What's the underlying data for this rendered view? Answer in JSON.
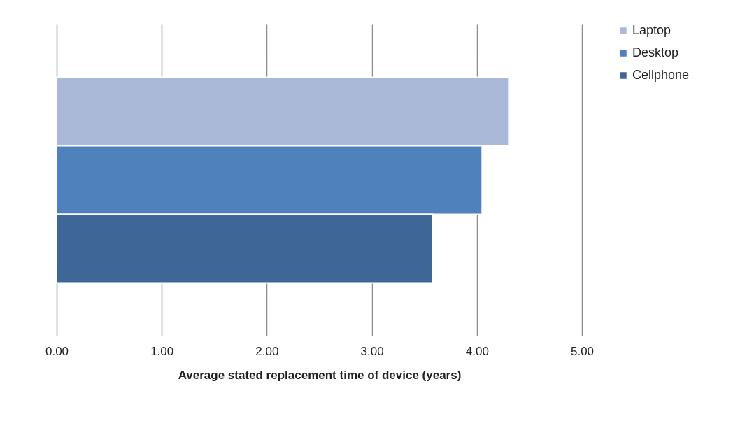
{
  "chart_data": {
    "type": "bar",
    "orientation": "horizontal",
    "xlabel": "Average stated replacement time of device (years)",
    "categories": [
      null
    ],
    "series": [
      {
        "name": "Laptop",
        "color": "#a9b9d7",
        "values": [
          4.31
        ]
      },
      {
        "name": "Desktop",
        "color": "#4f81bd",
        "values": [
          4.05
        ]
      },
      {
        "name": "Cellphone",
        "color": "#3e6797",
        "values": [
          3.58
        ]
      }
    ],
    "xlim": [
      0,
      5
    ],
    "xticks": [
      {
        "value": 0,
        "label": "0.00"
      },
      {
        "value": 1,
        "label": "1.00"
      },
      {
        "value": 2,
        "label": "2.00"
      },
      {
        "value": 3,
        "label": "3.00"
      },
      {
        "value": 4,
        "label": "4.00"
      },
      {
        "value": 5,
        "label": "5.00"
      }
    ],
    "grid": "x",
    "legend": "right"
  }
}
